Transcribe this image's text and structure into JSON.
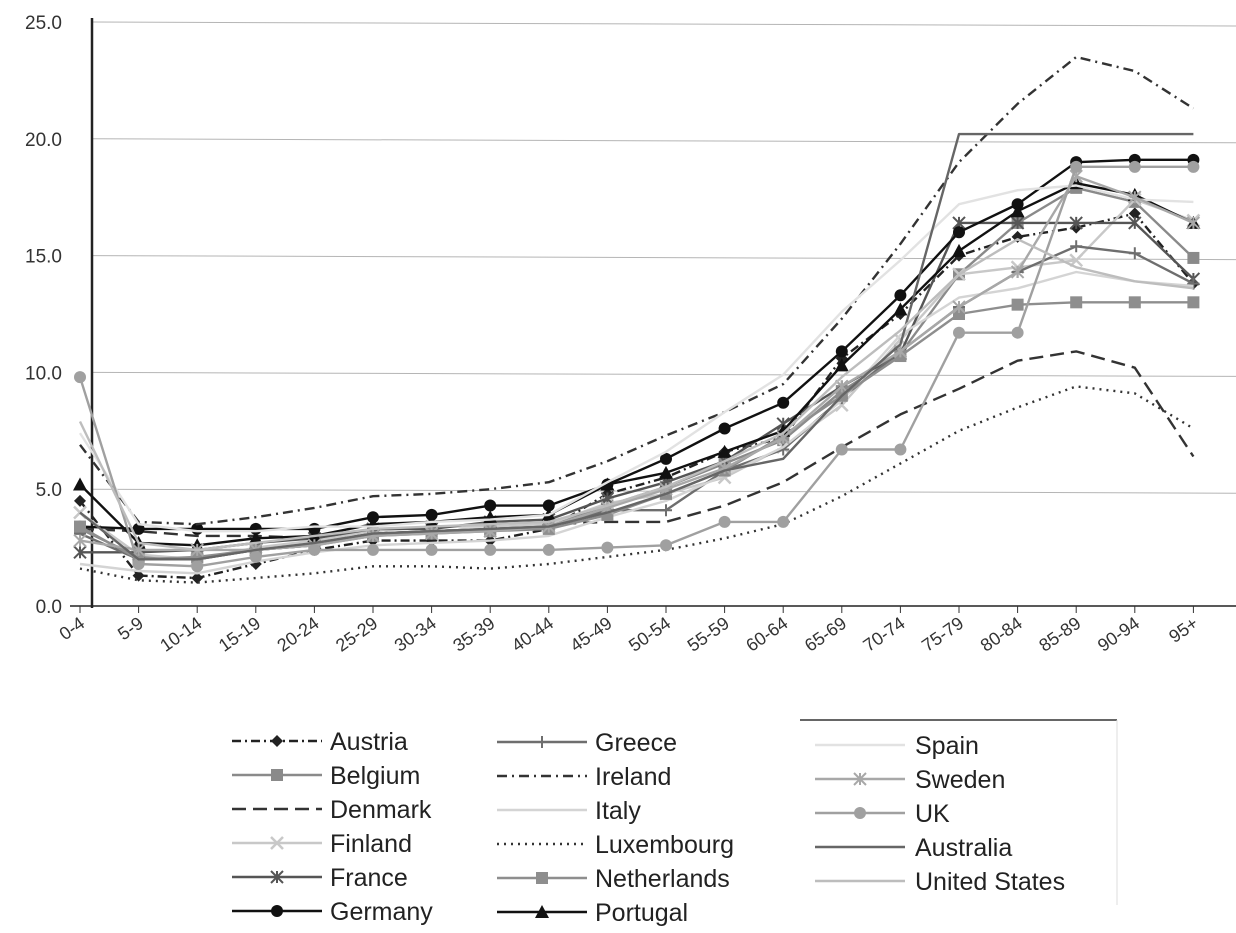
{
  "chart_data": {
    "type": "line",
    "title": "",
    "xlabel": "",
    "ylabel": "",
    "ylim": [
      0,
      25
    ],
    "y_ticks": [
      "0.0",
      "5.0",
      "10.0",
      "15.0",
      "20.0",
      "25.0"
    ],
    "grid": "horizontal",
    "legend_position": "bottom",
    "categories": [
      "0-4",
      "5-9",
      "10-14",
      "15-19",
      "20-24",
      "25-29",
      "30-34",
      "35-39",
      "40-44",
      "45-49",
      "50-54",
      "55-59",
      "60-64",
      "65-69",
      "70-74",
      "75-79",
      "80-84",
      "85-89",
      "90-94",
      "95+"
    ],
    "series": [
      {
        "name": "Austria",
        "color": "#222222",
        "dash": "9,4,2,4",
        "marker": "diamond",
        "values": [
          4.5,
          1.3,
          1.2,
          1.8,
          2.4,
          2.8,
          2.8,
          2.8,
          3.3,
          4.8,
          5.5,
          6.6,
          7.2,
          10.6,
          12.5,
          15.0,
          15.8,
          16.2,
          16.8,
          13.8
        ]
      },
      {
        "name": "Belgium",
        "color": "#8a8a8a",
        "dash": "",
        "marker": "square",
        "values": [
          3.3,
          2.1,
          2.0,
          2.4,
          2.6,
          3.1,
          3.2,
          3.3,
          3.5,
          4.3,
          5.1,
          6.1,
          7.1,
          9.2,
          10.8,
          14.2,
          16.4,
          17.9,
          17.3,
          14.9
        ]
      },
      {
        "name": "Denmark",
        "color": "#333333",
        "dash": "14,7",
        "marker": "none",
        "values": [
          3.3,
          3.2,
          3.0,
          3.0,
          2.9,
          3.1,
          3.2,
          3.3,
          3.5,
          3.6,
          3.6,
          4.3,
          5.3,
          6.8,
          8.2,
          9.3,
          10.5,
          10.9,
          10.2,
          6.4
        ]
      },
      {
        "name": "Finland",
        "color": "#c8c8c8",
        "dash": "",
        "marker": "x",
        "values": [
          4.0,
          2.2,
          2.0,
          2.5,
          2.8,
          3.2,
          3.4,
          3.4,
          3.5,
          4.4,
          4.8,
          5.5,
          6.8,
          8.6,
          11.4,
          14.2,
          14.5,
          14.8,
          17.4,
          16.5
        ]
      },
      {
        "name": "France",
        "color": "#555555",
        "dash": "",
        "marker": "star",
        "values": [
          2.3,
          2.3,
          2.4,
          2.7,
          2.9,
          3.3,
          3.3,
          3.6,
          3.7,
          4.6,
          5.3,
          6.2,
          7.8,
          9.4,
          10.8,
          16.4,
          16.4,
          16.4,
          16.4,
          14.0
        ]
      },
      {
        "name": "Germany",
        "color": "#111111",
        "dash": "",
        "marker": "circle",
        "values": [
          3.4,
          3.3,
          3.3,
          3.3,
          3.3,
          3.8,
          3.9,
          4.3,
          4.3,
          5.2,
          6.3,
          7.6,
          8.7,
          10.9,
          13.3,
          16.0,
          17.2,
          19.0,
          19.1,
          19.1
        ]
      },
      {
        "name": "Greece",
        "color": "#6e6e6e",
        "dash": "",
        "marker": "plus",
        "values": [
          3.1,
          2.0,
          2.0,
          2.4,
          2.6,
          3.1,
          3.2,
          3.3,
          3.4,
          4.1,
          4.1,
          5.8,
          6.7,
          8.9,
          10.9,
          12.8,
          14.3,
          15.4,
          15.1,
          13.8
        ]
      },
      {
        "name": "Ireland",
        "color": "#333333",
        "dash": "10,5,2,5",
        "marker": "none",
        "values": [
          6.9,
          3.6,
          3.5,
          3.8,
          4.2,
          4.7,
          4.8,
          5.0,
          5.3,
          6.2,
          7.3,
          8.3,
          9.5,
          12.3,
          15.5,
          19.0,
          21.5,
          23.5,
          22.9,
          21.3
        ]
      },
      {
        "name": "Italy",
        "color": "#d4d4d4",
        "dash": "",
        "marker": "none",
        "values": [
          1.8,
          1.5,
          1.4,
          1.9,
          2.3,
          2.6,
          2.7,
          2.8,
          3.0,
          3.8,
          4.5,
          5.6,
          6.8,
          8.8,
          11.6,
          13.2,
          13.6,
          14.3,
          13.9,
          13.7
        ]
      },
      {
        "name": "Luxembourg",
        "color": "#333333",
        "dash": "2,5",
        "marker": "none",
        "values": [
          1.6,
          1.1,
          1.0,
          1.2,
          1.4,
          1.7,
          1.7,
          1.6,
          1.8,
          2.1,
          2.4,
          2.9,
          3.5,
          4.7,
          6.1,
          7.5,
          8.5,
          9.4,
          9.1,
          7.6
        ]
      },
      {
        "name": "Netherlands",
        "color": "#8e8e8e",
        "dash": "",
        "marker": "square",
        "values": [
          3.4,
          2.0,
          2.1,
          2.4,
          2.6,
          3.0,
          3.1,
          3.2,
          3.3,
          3.9,
          4.8,
          5.8,
          7.3,
          9.0,
          10.7,
          12.5,
          12.9,
          13.0,
          13.0,
          13.0
        ]
      },
      {
        "name": "Portugal",
        "color": "#111111",
        "dash": "",
        "marker": "triangle",
        "values": [
          5.2,
          2.7,
          2.6,
          2.9,
          3.0,
          3.5,
          3.6,
          3.8,
          3.9,
          5.2,
          5.7,
          6.6,
          7.5,
          10.3,
          12.7,
          15.2,
          16.9,
          18.1,
          17.6,
          16.4
        ]
      },
      {
        "name": "Spain",
        "color": "#e2e2e2",
        "dash": "",
        "marker": "none",
        "values": [
          7.4,
          3.5,
          3.2,
          3.2,
          3.4,
          3.4,
          3.6,
          3.7,
          3.9,
          5.3,
          6.6,
          8.3,
          9.9,
          12.6,
          14.8,
          17.2,
          17.8,
          18.0,
          17.4,
          17.3
        ]
      },
      {
        "name": "Sweden",
        "color": "#a8a8a8",
        "dash": "",
        "marker": "star",
        "values": [
          2.8,
          2.4,
          2.4,
          2.4,
          2.6,
          3.0,
          3.1,
          3.2,
          3.4,
          4.2,
          5.0,
          5.9,
          7.2,
          9.4,
          10.9,
          12.8,
          14.3,
          18.4,
          17.5,
          16.4
        ]
      },
      {
        "name": "UK",
        "color": "#a0a0a0",
        "dash": "",
        "marker": "circle",
        "values": [
          9.8,
          1.8,
          1.7,
          2.1,
          2.4,
          2.4,
          2.4,
          2.4,
          2.4,
          2.5,
          2.6,
          3.6,
          3.6,
          6.7,
          6.7,
          11.7,
          11.7,
          18.8,
          18.8,
          18.8
        ]
      },
      {
        "name": "Australia",
        "color": "#666666",
        "dash": "",
        "marker": "none",
        "values": [
          4.0,
          2.0,
          2.0,
          2.4,
          2.7,
          3.1,
          3.2,
          3.3,
          3.4,
          4.0,
          4.8,
          5.8,
          6.3,
          9.0,
          11.2,
          20.2,
          20.2,
          20.2,
          20.2,
          20.2
        ]
      },
      {
        "name": "United States",
        "color": "#bdbdbd",
        "dash": "",
        "marker": "none",
        "values": [
          7.9,
          2.7,
          2.4,
          2.7,
          3.0,
          3.3,
          3.4,
          3.5,
          3.6,
          4.3,
          5.1,
          6.2,
          7.4,
          9.8,
          11.8,
          14.2,
          15.7,
          14.5,
          13.9,
          13.6
        ]
      }
    ]
  }
}
